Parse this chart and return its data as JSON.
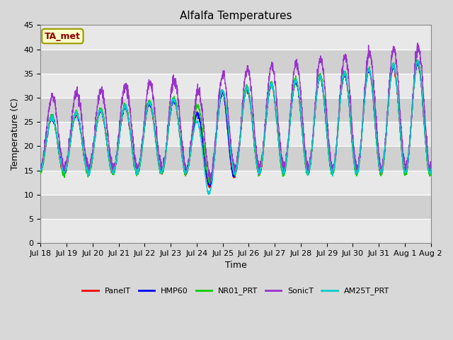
{
  "title": "Alfalfa Temperatures",
  "xlabel": "Time",
  "ylabel": "Temperature (C)",
  "ylim": [
    0,
    45
  ],
  "yticks": [
    0,
    5,
    10,
    15,
    20,
    25,
    30,
    35,
    40,
    45
  ],
  "annotation_text": "TA_met",
  "annotation_color": "#8B0000",
  "annotation_bg": "#FFFFCC",
  "annotation_border": "#999900",
  "series_names": [
    "PanelT",
    "HMP60",
    "NR01_PRT",
    "SonicT",
    "AM25T_PRT"
  ],
  "series_colors": [
    "#FF0000",
    "#0000FF",
    "#00CC00",
    "#9933CC",
    "#00CCCC"
  ],
  "lw": 1.0,
  "bg_color": "#D8D8D8",
  "plot_bg_light": "#E8E8E8",
  "plot_bg_dark": "#D0D0D0",
  "grid_color": "#FFFFFF",
  "xtick_labels": [
    "Jul 18",
    "Jul 19",
    "Jul 20",
    "Jul 21",
    "Jul 22",
    "Jul 23",
    "Jul 24",
    "Jul 25",
    "Jul 26",
    "Jul 27",
    "Jul 28",
    "Jul 29",
    "Jul 30",
    "Jul 31",
    "Aug 1",
    "Aug 2"
  ],
  "n_days": 16,
  "pts_per_day": 144,
  "title_fontsize": 11,
  "axis_fontsize": 9,
  "tick_fontsize": 8,
  "legend_fontsize": 8
}
